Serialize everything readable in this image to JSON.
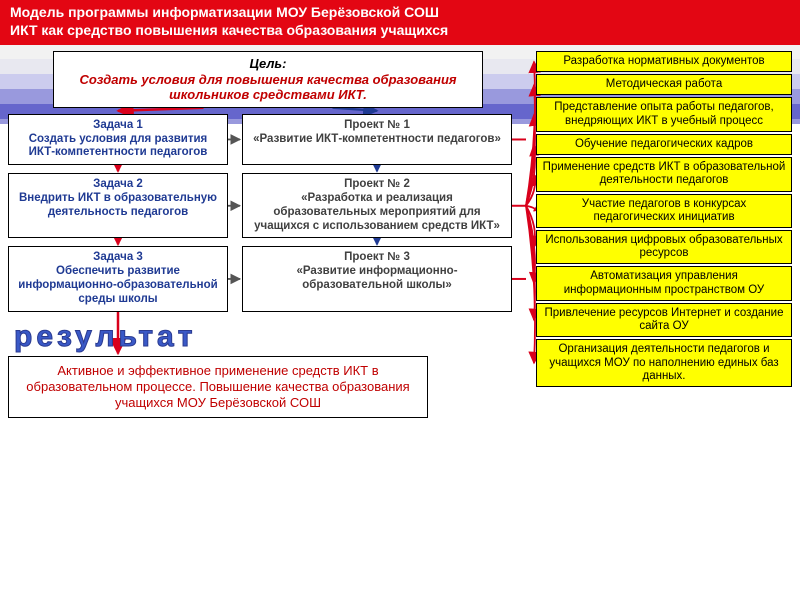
{
  "header": {
    "line1": "Модель программы информатизации МОУ Берёзовской СОШ",
    "line2": "ИКТ  как средство повышения качества образования учащихся",
    "bg": "#e30613",
    "fg": "#ffffff"
  },
  "goal": {
    "title": "Цель:",
    "text": "Создать условия для повышения качества образования школьников средствами ИКТ.",
    "border": "#000000",
    "color": "#c00000"
  },
  "tasks": [
    {
      "title": "Задача 1",
      "text": "Создать условия для развития ИКТ-компетентности педагогов"
    },
    {
      "title": "Задача 2",
      "text": "Внедрить ИКТ в образовательную деятельность педагогов"
    },
    {
      "title": "Задача 3",
      "text": "Обеспечить развитие информационно-образовательной среды школы"
    }
  ],
  "projects": [
    {
      "title": "Проект № 1",
      "text": "«Развитие ИКТ-компетентности педагогов»"
    },
    {
      "title": "Проект № 2",
      "text": "«Разработка и реализация образовательных мероприятий для учащихся с использованием средств ИКТ»"
    },
    {
      "title": "Проект № 3",
      "text": "«Развитие информационно-образовательной школы»"
    }
  ],
  "task_color": "#1f3a93",
  "project_color": "#404040",
  "result_label": "результат",
  "result_label_color": "#3a59c7",
  "result": {
    "text": "Активное и эффективное применение средств ИКТ в образовательном процессе. Повышение качества образования учащихся МОУ Берёзовской СОШ",
    "color": "#c00000"
  },
  "outcomes": [
    "Разработка нормативных документов",
    "Методическая работа",
    "Представление опыта работы педагогов, внедряющих ИКТ в учебный процесс",
    "Обучение педагогических кадров",
    "Применение средств ИКТ в образовательной деятельности педагогов",
    "Участие педагогов в конкурсах педагогических инициатив",
    "Использования цифровых образовательных ресурсов",
    "Автоматизация управления информационным пространством ОУ",
    "Привлечение ресурсов Интернет и создание сайта ОУ",
    "Организация деятельности педагогов и учащихся МОУ по наполнению единых баз данных."
  ],
  "outcome_bg": "#ffff00",
  "arrows": {
    "red": "#d9001b",
    "blue": "#1f3a93",
    "task_project": "#555555"
  }
}
